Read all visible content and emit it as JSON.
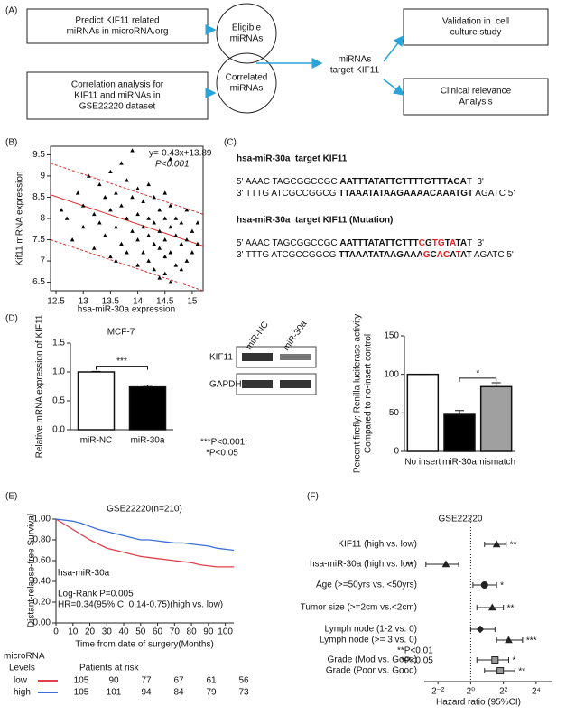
{
  "panel_labels": [
    "(A)",
    "(B)",
    "(C)",
    "(D)",
    "(E)",
    "(F)"
  ],
  "flowchart": {
    "nodes": [
      {
        "lines": [
          "Predict KIF11 related",
          "miRNAs in microRNA.org"
        ]
      },
      {
        "lines": [
          "Correlation analysis for",
          "KIF11 and miRNAs in",
          "GSE22220 dataset"
        ]
      },
      {
        "lines": [
          "Eligible",
          "miRNAs"
        ]
      },
      {
        "lines": [
          "Correlated",
          "miRNAs"
        ]
      },
      {
        "lines": [
          "miRNAs",
          "target KIF11"
        ]
      },
      {
        "lines": [
          "Validation in  cell",
          "culture study"
        ]
      },
      {
        "lines": [
          "Clinical relevance",
          "Analysis"
        ]
      }
    ]
  },
  "sequences": [
    {
      "title": "hsa-miR-30a  target KIF11",
      "lines": [
        [
          {
            "text": "5' AAAC TAGCGGCCGC ",
            "style": "normal"
          },
          {
            "text": "AATTTATATTCTTTTGTTTACA",
            "style": "bold"
          },
          {
            "text": "T  3'",
            "style": "normal"
          }
        ],
        [
          {
            "text": "3' TTTG ATCGCCGGCG ",
            "style": "normal"
          },
          {
            "text": "TTAAATATAAGAAAACAAATGT",
            "style": "bold"
          },
          {
            "text": " AGATC 5'",
            "style": "normal"
          }
        ]
      ]
    },
    {
      "title": "hsa-miR-30a  target KIF11 (Mutation)",
      "lines": [
        [
          {
            "text": "5' AAAC TAGCGGCCGC ",
            "style": "normal"
          },
          {
            "text": "AATTTATATTCTTT",
            "style": "bold"
          },
          {
            "text": "C",
            "style": "red"
          },
          {
            "text": "G",
            "style": "bold"
          },
          {
            "text": "TG",
            "style": "red"
          },
          {
            "text": "T",
            "style": "bold"
          },
          {
            "text": "A",
            "style": "red"
          },
          {
            "text": "TA",
            "style": "bold"
          },
          {
            "text": "T  3'",
            "style": "normal"
          }
        ],
        [
          {
            "text": "3' TTTG ATCGCCGGCG ",
            "style": "normal"
          },
          {
            "text": "TTAAATATAAGAAA",
            "style": "bold"
          },
          {
            "text": "G",
            "style": "red"
          },
          {
            "text": "C",
            "style": "bold"
          },
          {
            "text": "AC",
            "style": "red"
          },
          {
            "text": "A",
            "style": "bold"
          },
          {
            "text": "T",
            "style": "red"
          },
          {
            "text": "AT",
            "style": "bold"
          },
          {
            "text": " AGATC 5'",
            "style": "normal"
          }
        ]
      ]
    }
  ],
  "western_blot": {
    "lanes": [
      "miR-NC",
      "miR-30a"
    ],
    "bands": [
      "KIF11",
      "GAPDH"
    ]
  },
  "chart_data": [
    {
      "type": "scatter",
      "xlabel": "hsa-miR-30a expression",
      "ylabel": "Kif11 mRNA expression",
      "equation": "y=-0.43x+13.89",
      "p_value": "P<0.001",
      "fit": {
        "slope": -0.43,
        "intercept": 13.89
      },
      "bands": [
        {
          "x": [
            12.4,
            15.2
          ],
          "values": [
            9.3,
            8.1
          ]
        },
        {
          "x": [
            12.4,
            15.2
          ],
          "values": [
            7.5,
            6.3
          ]
        }
      ],
      "color": "#000000",
      "line_color": "#d93030",
      "x": [
        12.6,
        12.7,
        12.8,
        12.9,
        13.0,
        13.0,
        13.1,
        13.2,
        13.2,
        13.3,
        13.3,
        13.4,
        13.4,
        13.5,
        13.5,
        13.5,
        13.6,
        13.6,
        13.7,
        13.7,
        13.7,
        13.8,
        13.8,
        13.8,
        13.9,
        13.9,
        13.9,
        14.0,
        14.0,
        14.0,
        14.0,
        14.1,
        14.1,
        14.1,
        14.2,
        14.2,
        14.2,
        14.2,
        14.3,
        14.3,
        14.3,
        14.3,
        14.4,
        14.4,
        14.4,
        14.4,
        14.5,
        14.5,
        14.5,
        14.5,
        14.5,
        14.6,
        14.6,
        14.6,
        14.6,
        14.7,
        14.7,
        14.7,
        14.8,
        14.8,
        14.8,
        14.9,
        14.9,
        14.9,
        15.0,
        15.0,
        15.1,
        15.1,
        13.6,
        14.6
      ],
      "y": [
        8.2,
        8.0,
        7.5,
        8.6,
        8.3,
        7.8,
        9.0,
        8.1,
        7.3,
        8.8,
        7.9,
        8.5,
        7.6,
        9.1,
        8.2,
        7.1,
        8.6,
        7.8,
        9.3,
        8.3,
        7.4,
        8.9,
        8.0,
        7.2,
        8.5,
        7.7,
        9.6,
        8.7,
        8.1,
        7.5,
        6.9,
        8.4,
        7.8,
        7.2,
        8.8,
        8.0,
        7.6,
        7.0,
        8.5,
        7.9,
        7.4,
        6.8,
        8.2,
        7.7,
        7.3,
        6.6,
        8.6,
        8.0,
        7.5,
        7.1,
        6.7,
        8.3,
        7.8,
        7.2,
        6.5,
        8.0,
        7.6,
        6.9,
        7.9,
        7.4,
        6.8,
        8.2,
        7.5,
        7.0,
        7.7,
        7.2,
        7.9,
        7.4,
        7.0,
        9.4
      ],
      "xlim": [
        12.4,
        15.2
      ],
      "xticks": [
        12.5,
        13,
        13.5,
        14,
        14.5,
        15
      ],
      "ylim": [
        6.3,
        9.7
      ],
      "yticks": [
        6.5,
        7,
        7.5,
        8,
        8.5,
        9,
        9.5
      ]
    },
    {
      "type": "bar",
      "title": "MCF-7",
      "ylabel": "Relative mRNA expression of KIF11",
      "categories": [
        "miR-NC",
        "miR-30a"
      ],
      "values": [
        1.0,
        0.74
      ],
      "errors": [
        0.01,
        0.03
      ],
      "colors": [
        "#ffffff",
        "#000000"
      ],
      "ylim": [
        0,
        1.5
      ],
      "yticks": [
        {
          "value": 0,
          "label": "0.0"
        },
        0.5,
        {
          "value": 1,
          "label": "1.0"
        },
        1.5
      ],
      "significance": "***",
      "note": [
        "***P<0.001;",
        "*P<0.05"
      ]
    },
    {
      "type": "bar",
      "ylabel": [
        "Percent firefly: Renilla luciferase activity",
        "Compared to no-insert control"
      ],
      "categories": [
        "No insert",
        "miR-30a",
        "mismatch"
      ],
      "values": [
        100,
        48,
        84
      ],
      "errors": [
        0,
        5,
        5
      ],
      "colors": [
        "#ffffff",
        "#000000",
        "#a0a0a0"
      ],
      "ylim": [
        0,
        150
      ],
      "yticks": [
        0,
        50,
        100,
        150
      ],
      "significance": "*"
    },
    {
      "type": "line",
      "title": "GSE22220(n=210)",
      "ylabel": "Distant-relapse-free Survival",
      "xlabel": "Time from date of surgery(Months)",
      "annotations": [
        "hsa-miR-30a",
        "Log-Rank P=0.005",
        "HR=0.34(95% CI 0.14-0.75)(high vs. low)"
      ],
      "x": [
        0,
        5,
        10,
        15,
        20,
        25,
        30,
        35,
        40,
        45,
        50,
        55,
        60,
        65,
        70,
        75,
        80,
        85,
        90,
        95,
        100,
        105
      ],
      "series": [
        {
          "name": "low",
          "color": "#e0404a",
          "values": [
            1.0,
            0.95,
            0.9,
            0.85,
            0.8,
            0.76,
            0.72,
            0.7,
            0.68,
            0.66,
            0.64,
            0.63,
            0.62,
            0.61,
            0.6,
            0.59,
            0.58,
            0.56,
            0.55,
            0.54,
            0.54,
            0.54
          ]
        },
        {
          "name": "high",
          "color": "#3a6fd8",
          "values": [
            1.0,
            0.99,
            0.98,
            0.96,
            0.93,
            0.9,
            0.88,
            0.86,
            0.84,
            0.82,
            0.8,
            0.8,
            0.79,
            0.78,
            0.77,
            0.77,
            0.76,
            0.75,
            0.74,
            0.72,
            0.71,
            0.7
          ]
        }
      ],
      "xlim": [
        0,
        105
      ],
      "xticks": [
        0,
        10,
        20,
        30,
        40,
        50,
        60,
        70,
        80,
        90,
        100
      ],
      "ylim": [
        0,
        1
      ],
      "yticks": [
        {
          "value": 0,
          "label": "0.00"
        },
        {
          "value": 0.2,
          "label": "0.20"
        },
        {
          "value": 0.4,
          "label": "0.40"
        },
        {
          "value": 0.6,
          "label": "0.60"
        },
        {
          "value": 0.8,
          "label": "0.80"
        },
        {
          "value": 1,
          "label": "1.00"
        }
      ],
      "risk_table": {
        "header": [
          "microRNA",
          "Levels",
          "Patients at risk"
        ],
        "rows": [
          {
            "label": "low",
            "values": [
              105,
              90,
              77,
              67,
              61,
              56
            ]
          },
          {
            "label": "high",
            "values": [
              105,
              101,
              94,
              84,
              79,
              73
            ]
          }
        ]
      }
    },
    {
      "type": "forest",
      "title": "GSE22220",
      "xlabel": "Hazard ratio (95%CI)",
      "log_scale": true,
      "categories": [
        "KIF11 (high vs. low)",
        "hsa-miR-30a (high vs. low)",
        "Age (>=50yrs vs. <50yrs)",
        "Tumor size (>=2cm vs.<2cm)",
        "Lymph node (1-2 vs. 0)",
        "Lymph node (>= 3 vs. 0)",
        "Grade (Mod vs. Good)",
        "Grade (Poor vs. Good)"
      ],
      "values": [
        3,
        0.35,
        1.8,
        2.5,
        1.5,
        5,
        2.8,
        3.5
      ],
      "ci_low": [
        1.8,
        0.15,
        1.1,
        1.3,
        1.0,
        3,
        1.3,
        1.8
      ],
      "ci_high": [
        4.5,
        0.6,
        3,
        4,
        2.8,
        9,
        5,
        6.5
      ],
      "significance": [
        "**",
        "**",
        "*",
        "**",
        "",
        "***",
        "*",
        "**"
      ],
      "markers": [
        "triangle",
        "triangle",
        "circle",
        "triangle",
        "diamond",
        "triangle",
        "square",
        "square"
      ],
      "note": [
        "**P<0.01",
        "*P<0.05"
      ],
      "xlim": [
        0.14,
        32
      ],
      "xticks": [
        {
          "value": 0.25,
          "label": "2⁻²"
        },
        {
          "value": 1,
          "label": "2⁰"
        },
        {
          "value": 4,
          "label": "2²"
        },
        {
          "value": 16,
          "label": "2⁴"
        }
      ]
    }
  ]
}
